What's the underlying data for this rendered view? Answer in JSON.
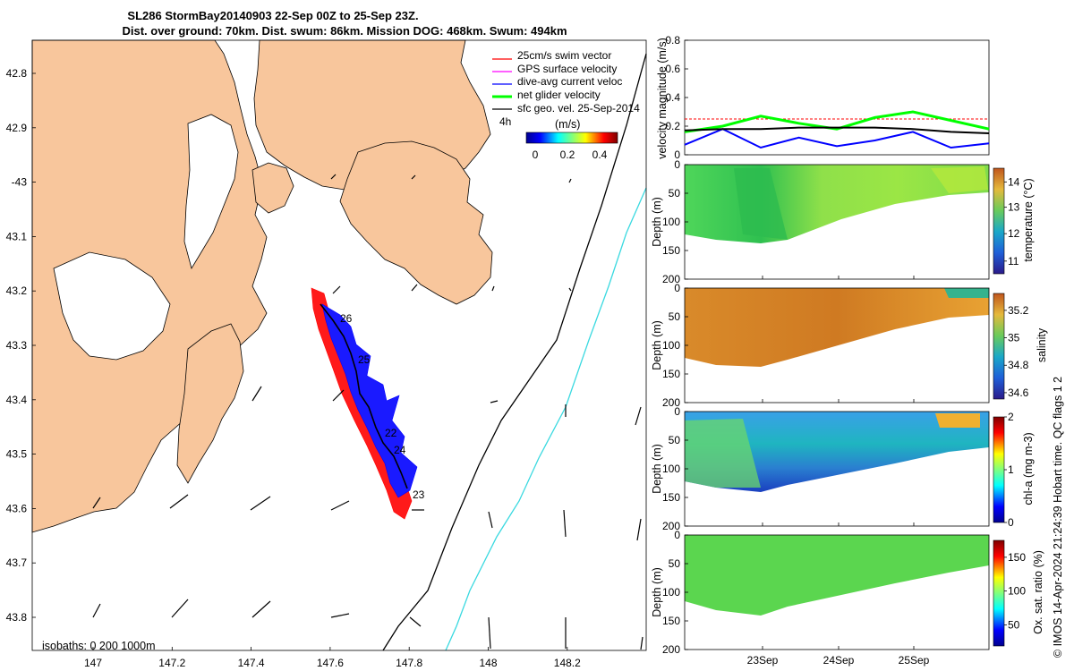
{
  "header": {
    "title_line1": "SL286 StormBay20140903 22-Sep 00Z to 25-Sep 23Z.",
    "title_line2": "Dist. over ground: 70km. Dist. swum: 86km. Mission DOG: 468km. Swum: 494km"
  },
  "map": {
    "lat_ticks": [
      "42.8",
      "42.9",
      "-43",
      "43.1",
      "43.2",
      "43.3",
      "43.4",
      "43.5",
      "43.6",
      "43.7",
      "43.8"
    ],
    "lon_ticks": [
      "147",
      "147.2",
      "147.4",
      "147.6",
      "147.8",
      "148",
      "148.2"
    ],
    "isobaths_label": "isobaths: 0   200  1000m",
    "day_labels": [
      "26",
      "25",
      "22",
      "24",
      "23"
    ],
    "colors": {
      "land": "#f8c69c",
      "sea": "#ffffff",
      "isobath_200": "#000000",
      "isobath_1000": "#3ad9e0",
      "swim": "#ff0000",
      "current": "#0000ff",
      "track": "#000000"
    }
  },
  "legend": {
    "items": [
      {
        "label": "25cm/s swim vector",
        "color": "#ff0000"
      },
      {
        "label": "GPS surface velocity",
        "color": "#ff00ff"
      },
      {
        "label": "dive-avg current veloc",
        "color": "#0000ff"
      },
      {
        "label": "net glider velocity",
        "color": "#00ff00"
      },
      {
        "label": "sfc geo. vel. 25-Sep-2014",
        "color": "#000000"
      }
    ],
    "colorbar_prefix": "4h",
    "colorbar_title": "(m/s)",
    "colorbar_ticks": [
      "0",
      "0.2",
      "0.4"
    ]
  },
  "velocity_panel": {
    "ylabel": "velocity magnitude (m/s)",
    "yticks": [
      "0",
      "0.2",
      "0.4",
      "0.6",
      "0.8"
    ]
  },
  "profile_panels": [
    {
      "ylabel": "Depth (m)",
      "cbar_label": "temperature (°C)",
      "cbar_ticks": [
        "11",
        "12",
        "13",
        "14"
      ],
      "depth_ticks": [
        "0",
        "50",
        "100",
        "150",
        "200"
      ]
    },
    {
      "ylabel": "Depth (m)",
      "cbar_label": "salinity",
      "cbar_ticks": [
        "34.6",
        "34.8",
        "35",
        "35.2"
      ],
      "depth_ticks": [
        "0",
        "50",
        "100",
        "150",
        "200"
      ]
    },
    {
      "ylabel": "Depth (m)",
      "cbar_label": "chl-a (mg m-3)",
      "cbar_ticks": [
        "0",
        "1",
        "2"
      ],
      "depth_ticks": [
        "0",
        "50",
        "100",
        "150",
        "200"
      ]
    },
    {
      "ylabel": "Depth (m)",
      "cbar_label": "Ox. sat. ratio (%)",
      "cbar_ticks": [
        "50",
        "100",
        "150"
      ],
      "depth_ticks": [
        "0",
        "50",
        "100",
        "150",
        "200"
      ]
    }
  ],
  "time_axis": {
    "ticks": [
      "23Sep",
      "24Sep",
      "25Sep"
    ]
  },
  "footer": {
    "credit": "© IMOS 14-Apr-2024 21:24:39 Hobart time. QC flags 1  2"
  },
  "chart_data": [
    {
      "type": "line",
      "title": "",
      "ylabel": "velocity magnitude (m/s)",
      "ylim": [
        0,
        0.8
      ],
      "x": [
        "22-Sep 00Z",
        "22-Sep 12Z",
        "23-Sep 00Z",
        "23-Sep 12Z",
        "24-Sep 00Z",
        "24-Sep 12Z",
        "25-Sep 00Z",
        "25-Sep 12Z",
        "25-Sep 23Z"
      ],
      "series": [
        {
          "name": "25cm/s swim vector",
          "color": "#ff0000",
          "values": [
            0.25,
            0.25,
            0.25,
            0.25,
            0.25,
            0.25,
            0.25,
            0.25,
            0.25
          ]
        },
        {
          "name": "dive-avg current veloc",
          "color": "#0000ff",
          "values": [
            0.07,
            0.18,
            0.05,
            0.12,
            0.06,
            0.1,
            0.16,
            0.05,
            0.08
          ]
        },
        {
          "name": "net glider velocity",
          "color": "#00ff00",
          "values": [
            0.16,
            0.2,
            0.27,
            0.22,
            0.18,
            0.26,
            0.3,
            0.24,
            0.18
          ]
        },
        {
          "name": "sfc geo. vel. 25-Sep-2014",
          "color": "#000000",
          "values": [
            0.17,
            0.18,
            0.18,
            0.19,
            0.19,
            0.19,
            0.18,
            0.16,
            0.15
          ]
        }
      ]
    },
    {
      "type": "heatmap",
      "quantity": "temperature (°C)",
      "clim": [
        10.5,
        14.8
      ],
      "depth_range": [
        0,
        200
      ],
      "typical_value": 12.8
    },
    {
      "type": "heatmap",
      "quantity": "salinity",
      "clim": [
        34.55,
        35.3
      ],
      "depth_range": [
        0,
        200
      ],
      "typical_value": 35.15
    },
    {
      "type": "heatmap",
      "quantity": "chl-a (mg m-3)",
      "clim": [
        0,
        2
      ],
      "depth_range": [
        0,
        200
      ],
      "typical_value": 0.9
    },
    {
      "type": "heatmap",
      "quantity": "Ox. sat. ratio (%)",
      "clim": [
        20,
        175
      ],
      "depth_range": [
        0,
        200
      ],
      "typical_value": 100
    }
  ]
}
